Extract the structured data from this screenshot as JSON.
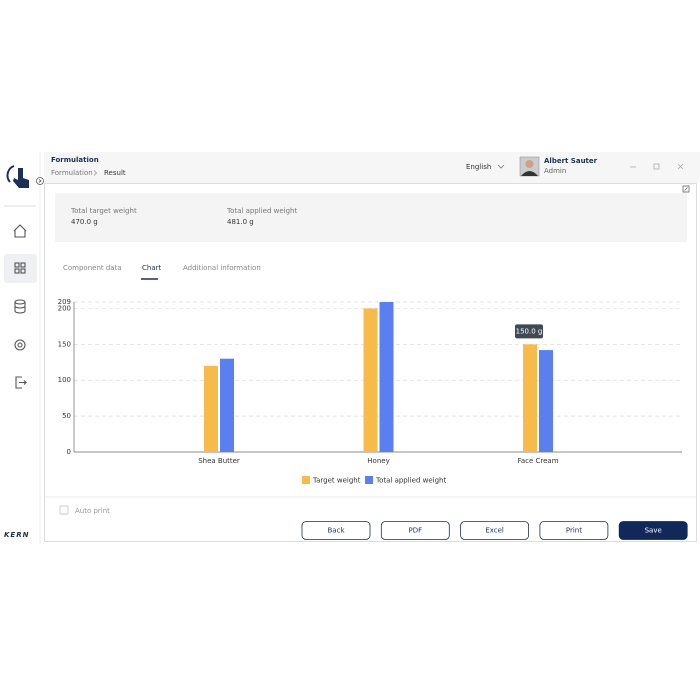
{
  "header": {
    "title": "Formulation",
    "breadcrumb": [
      "Formulation",
      "Result"
    ],
    "language": "English",
    "user": {
      "name": "Albert Sauter",
      "role": "Admin"
    }
  },
  "summary": [
    {
      "label": "Total target weight",
      "value": "470.0 g"
    },
    {
      "label": "Total applied weight",
      "value": "481.0 g"
    }
  ],
  "tabs": [
    "Component data",
    "Chart",
    "Additional information"
  ],
  "chart_data": {
    "type": "bar",
    "categories": [
      "Shea Butter",
      "Honey",
      "Face Cream"
    ],
    "series": [
      {
        "name": "Target weight",
        "color": "#f7bb4b",
        "values": [
          120,
          200,
          150
        ]
      },
      {
        "name": "Total applied weight",
        "color": "#5b7ff0",
        "values": [
          130,
          209,
          142
        ]
      }
    ],
    "ylim": [
      0,
      209
    ],
    "yticks": [
      0,
      50,
      100,
      150,
      200,
      209
    ],
    "grid": true,
    "legend": "bottom",
    "tooltip": "150.0 g"
  },
  "footer": {
    "auto_print": "Auto print",
    "buttons": [
      "Back",
      "PDF",
      "Excel",
      "Print",
      "Save"
    ],
    "brand": "KERN"
  }
}
